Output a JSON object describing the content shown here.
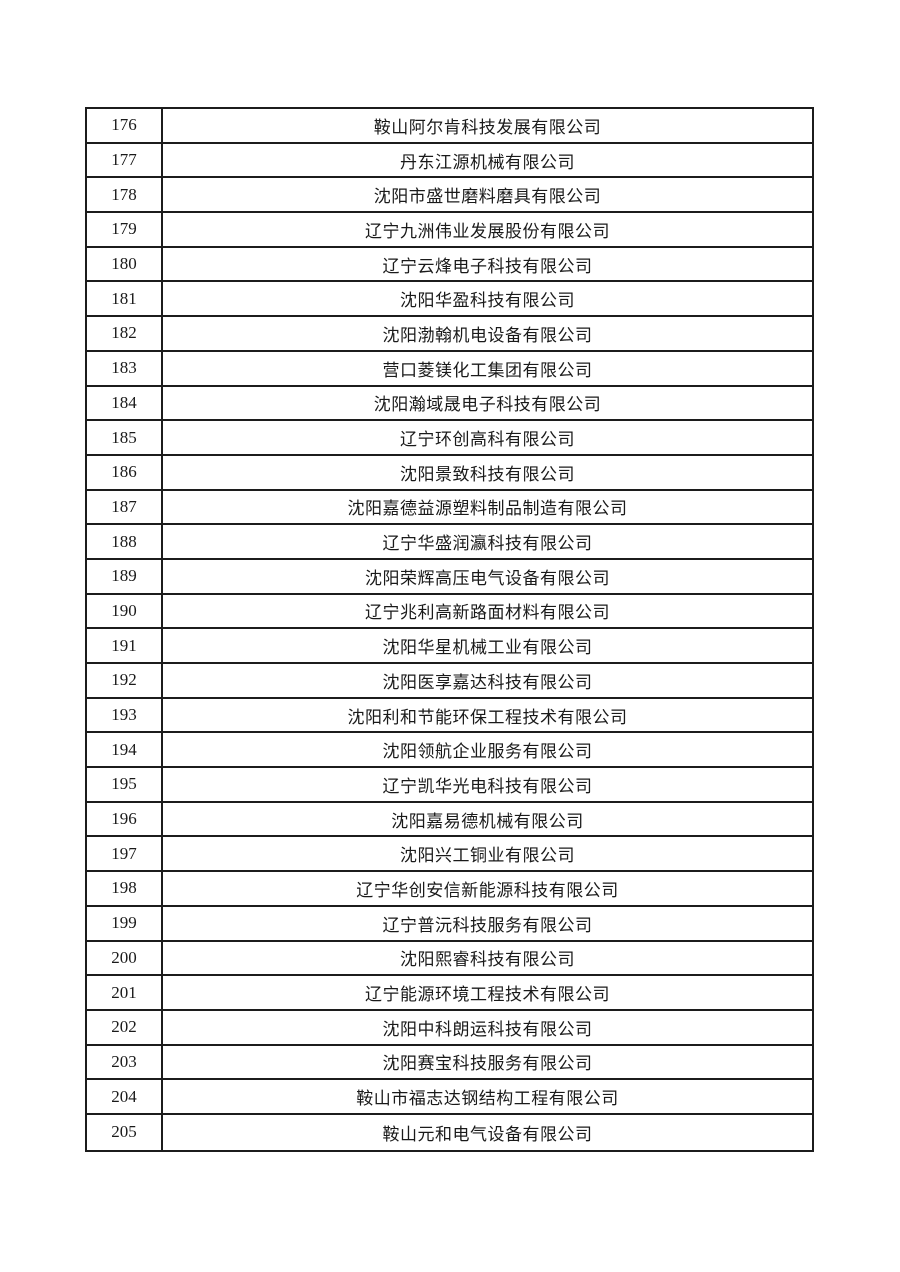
{
  "page": {
    "background_color": "#ffffff",
    "border_color": "#1c1c1c",
    "text_color": "#1a1a1a"
  },
  "table": {
    "rows": [
      {
        "index": "176",
        "company": "鞍山阿尔肯科技发展有限公司"
      },
      {
        "index": "177",
        "company": "丹东江源机械有限公司"
      },
      {
        "index": "178",
        "company": "沈阳市盛世磨料磨具有限公司"
      },
      {
        "index": "179",
        "company": "辽宁九洲伟业发展股份有限公司"
      },
      {
        "index": "180",
        "company": "辽宁云烽电子科技有限公司"
      },
      {
        "index": "181",
        "company": "沈阳华盈科技有限公司"
      },
      {
        "index": "182",
        "company": "沈阳渤翰机电设备有限公司"
      },
      {
        "index": "183",
        "company": "营口菱镁化工集团有限公司"
      },
      {
        "index": "184",
        "company": "沈阳瀚域晟电子科技有限公司"
      },
      {
        "index": "185",
        "company": "辽宁环创高科有限公司"
      },
      {
        "index": "186",
        "company": "沈阳景致科技有限公司"
      },
      {
        "index": "187",
        "company": "沈阳嘉德益源塑料制品制造有限公司"
      },
      {
        "index": "188",
        "company": "辽宁华盛润瀛科技有限公司"
      },
      {
        "index": "189",
        "company": "沈阳荣辉高压电气设备有限公司"
      },
      {
        "index": "190",
        "company": "辽宁兆利高新路面材料有限公司"
      },
      {
        "index": "191",
        "company": "沈阳华星机械工业有限公司"
      },
      {
        "index": "192",
        "company": "沈阳医享嘉达科技有限公司"
      },
      {
        "index": "193",
        "company": "沈阳利和节能环保工程技术有限公司"
      },
      {
        "index": "194",
        "company": "沈阳领航企业服务有限公司"
      },
      {
        "index": "195",
        "company": "辽宁凯华光电科技有限公司"
      },
      {
        "index": "196",
        "company": "沈阳嘉易德机械有限公司"
      },
      {
        "index": "197",
        "company": "沈阳兴工铜业有限公司"
      },
      {
        "index": "198",
        "company": "辽宁华创安信新能源科技有限公司"
      },
      {
        "index": "199",
        "company": "辽宁普沅科技服务有限公司"
      },
      {
        "index": "200",
        "company": "沈阳熙睿科技有限公司"
      },
      {
        "index": "201",
        "company": "辽宁能源环境工程技术有限公司"
      },
      {
        "index": "202",
        "company": "沈阳中科朗运科技有限公司"
      },
      {
        "index": "203",
        "company": "沈阳赛宝科技服务有限公司"
      },
      {
        "index": "204",
        "company": "鞍山市福志达钢结构工程有限公司"
      },
      {
        "index": "205",
        "company": "鞍山元和电气设备有限公司"
      }
    ]
  }
}
